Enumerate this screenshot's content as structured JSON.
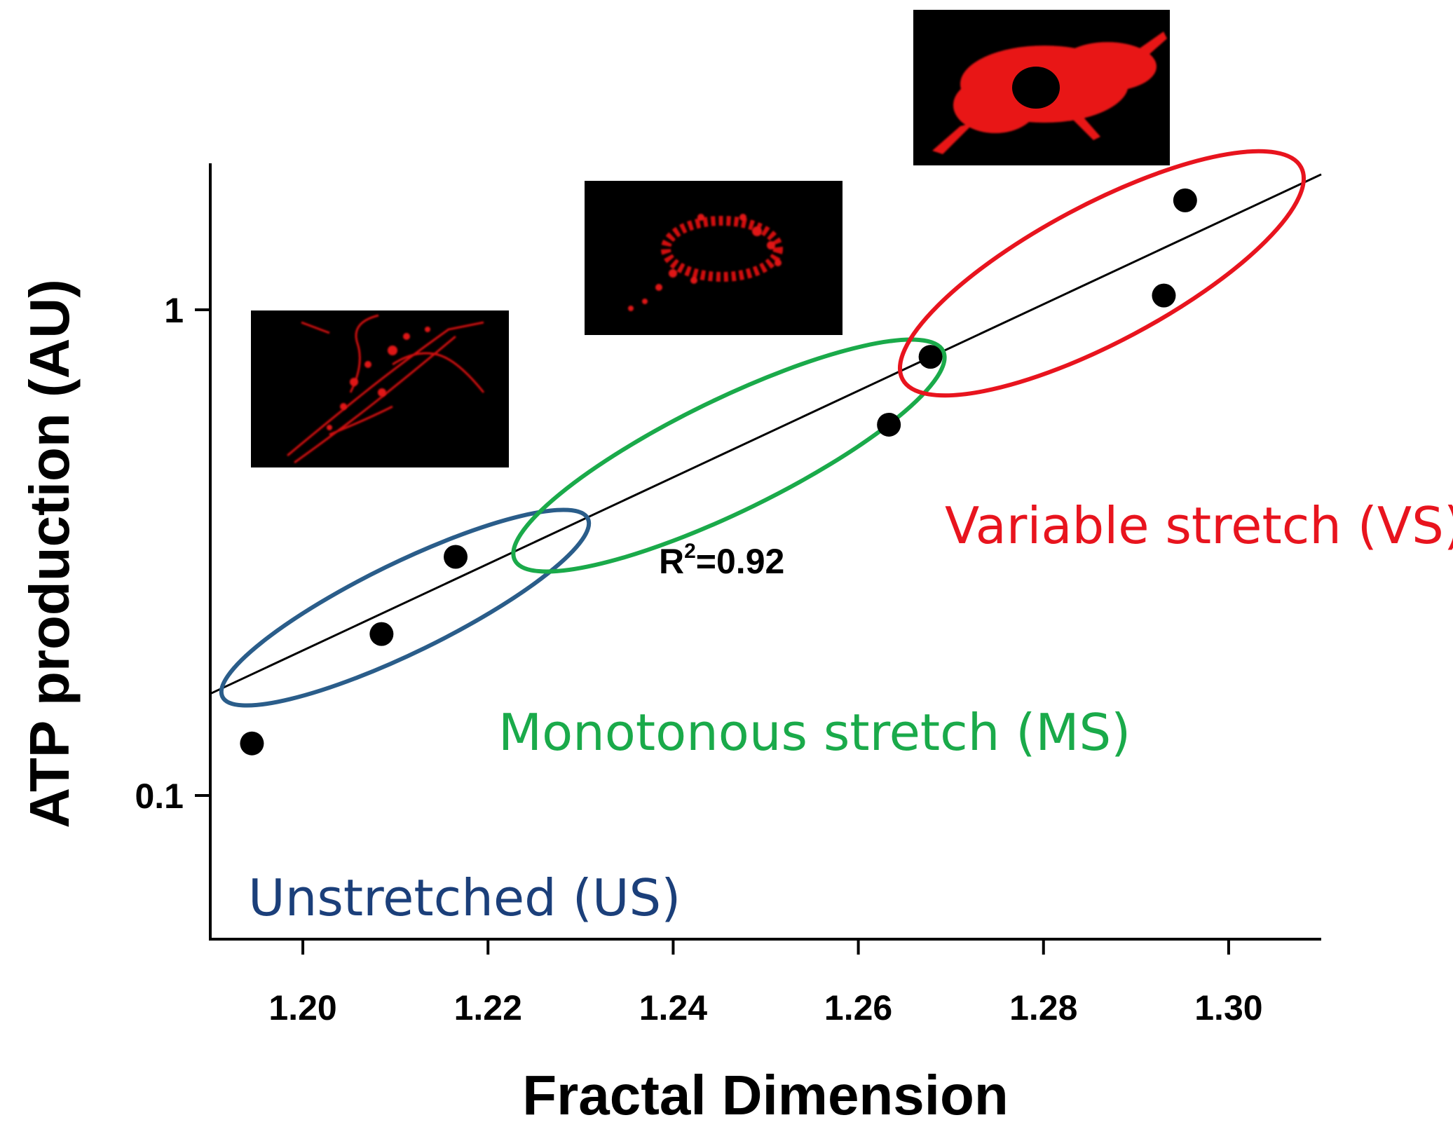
{
  "chart_data": {
    "type": "scatter",
    "title": "",
    "xlabel": "Fractal Dimension",
    "ylabel": "ATP production (AU)",
    "xlim": [
      1.19,
      1.31
    ],
    "ylim": [
      0.05,
      1.8
    ],
    "y_scale": "log",
    "x_ticks": [
      "1.20",
      "1.22",
      "1.24",
      "1.26",
      "1.28",
      "1.30"
    ],
    "y_ticks": [
      "0.1",
      "1"
    ],
    "points": [
      {
        "x": 1.1945,
        "y": 0.128
      },
      {
        "x": 1.2085,
        "y": 0.215
      },
      {
        "x": 1.2165,
        "y": 0.31
      },
      {
        "x": 1.2633,
        "y": 0.58
      },
      {
        "x": 1.2678,
        "y": 0.8
      },
      {
        "x": 1.293,
        "y": 1.07
      },
      {
        "x": 1.2953,
        "y": 1.68
      }
    ],
    "fit_line": {
      "x": [
        1.19,
        1.31
      ],
      "y": [
        0.162,
        1.9
      ]
    },
    "annotation": {
      "r2_prefix": "R",
      "r2_sup": "2",
      "r2_value": "=0.92"
    },
    "groups": [
      {
        "label": "Unstretched (US)",
        "color": "#1b3f7a",
        "ellipse_color": "#2a5d8a"
      },
      {
        "label": "Monotonous stretch (MS)",
        "color": "#1aaa4a",
        "ellipse_color": "#1aaa4a"
      },
      {
        "label": "Variable stretch (VS)",
        "color": "#e8141e",
        "ellipse_color": "#e8141e"
      }
    ],
    "grid": false,
    "legend": "none"
  }
}
